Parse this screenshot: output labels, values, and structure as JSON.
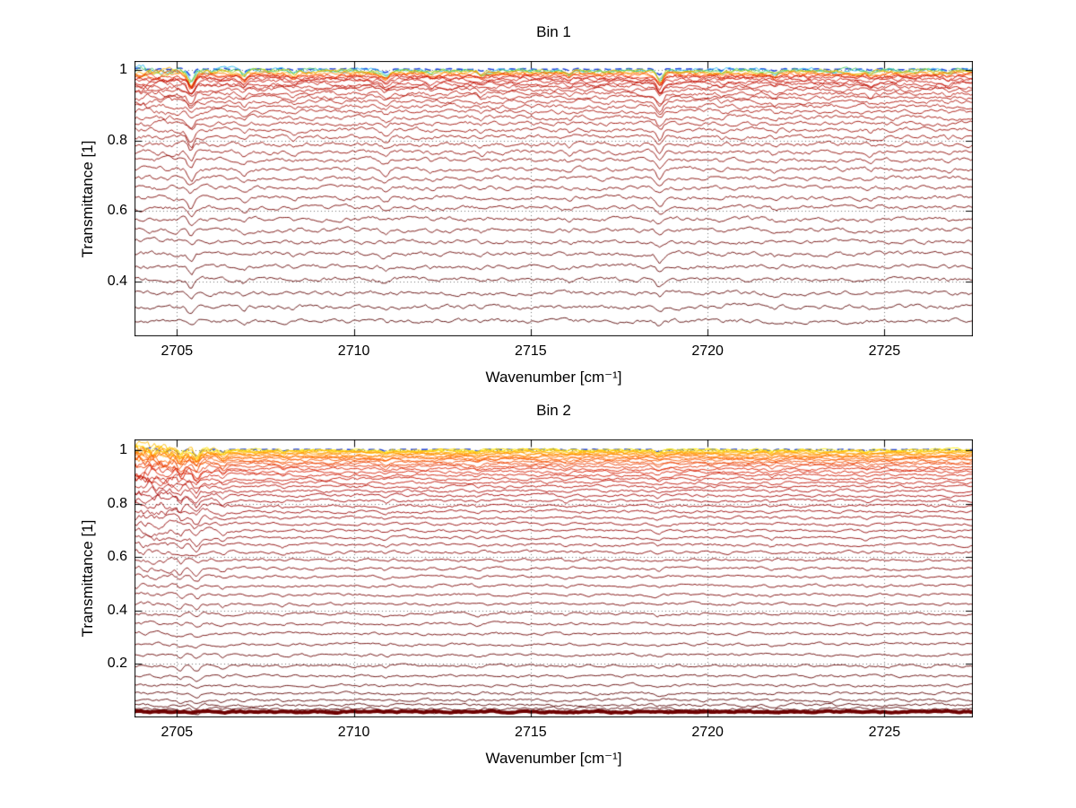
{
  "figure": {
    "background": "#ffffff",
    "axis_color": "#000000"
  },
  "chart_data": [
    {
      "type": "line",
      "title": "Bin 1",
      "xlabel": "Wavenumber [cm⁻¹]",
      "ylabel": "Transmittance [1]",
      "xlim": [
        2703.8,
        2727.5
      ],
      "ylim": [
        0.245,
        1.025
      ],
      "xticks": [
        2705,
        2710,
        2715,
        2720,
        2725
      ],
      "xtick_labels": [
        "2705",
        "2710",
        "2715",
        "2720",
        "2725"
      ],
      "yticks": [
        0.4,
        0.6,
        0.8,
        1
      ],
      "ytick_labels": [
        "0.4",
        "0.6",
        "0.8",
        "1"
      ],
      "grid": "dotted",
      "grid_color": "#777777",
      "axis_color": "#000000",
      "legend": "none",
      "dash_first": true,
      "noise_amp": 0.0045,
      "edge_noise": 0.3,
      "color_stops": [
        [
          0,
          "#2244dd"
        ],
        [
          0.026,
          "#22bbee"
        ],
        [
          0.055,
          "#44cc44"
        ],
        [
          0.08,
          "#cccc00"
        ],
        [
          0.105,
          "#ffaa00"
        ],
        [
          0.13,
          "#ff7700"
        ],
        [
          0.16,
          "#ff4400"
        ],
        [
          0.2,
          "#cc1100"
        ],
        [
          1,
          "#550000"
        ]
      ],
      "series_levels": [
        1.002,
        0.999,
        0.997,
        0.995,
        0.992,
        0.989,
        0.986,
        0.982,
        0.978,
        0.973,
        0.967,
        0.96,
        0.952,
        0.943,
        0.933,
        0.922,
        0.91,
        0.896,
        0.881,
        0.865,
        0.848,
        0.83,
        0.81,
        0.789,
        0.767,
        0.744,
        0.719,
        0.693,
        0.666,
        0.638,
        0.609,
        0.578,
        0.546,
        0.513,
        0.479,
        0.443,
        0.406,
        0.368,
        0.329,
        0.288
      ],
      "features": [
        {
          "x": 2705.4,
          "w": 0.12,
          "d": 0.03
        },
        {
          "x": 2706.9,
          "w": 0.1,
          "d": 0.012
        },
        {
          "x": 2708.3,
          "w": 0.1,
          "d": 0.007
        },
        {
          "x": 2710.9,
          "w": 0.13,
          "d": 0.014
        },
        {
          "x": 2712.2,
          "w": 0.08,
          "d": 0.006
        },
        {
          "x": 2713.6,
          "w": 0.1,
          "d": 0.009
        },
        {
          "x": 2716.1,
          "w": 0.09,
          "d": 0.007
        },
        {
          "x": 2718.65,
          "w": 0.12,
          "d": 0.026
        },
        {
          "x": 2720.4,
          "w": 0.08,
          "d": 0.007
        },
        {
          "x": 2721.9,
          "w": 0.1,
          "d": 0.009
        },
        {
          "x": 2724.6,
          "w": 0.09,
          "d": 0.007
        },
        {
          "x": 2726.8,
          "w": 0.09,
          "d": 0.006
        }
      ]
    },
    {
      "type": "line",
      "title": "Bin 2",
      "xlabel": "Wavenumber [cm⁻¹]",
      "ylabel": "Transmittance [1]",
      "xlim": [
        2703.8,
        2727.5
      ],
      "ylim": [
        0.0,
        1.04
      ],
      "xticks": [
        2705,
        2710,
        2715,
        2720,
        2725
      ],
      "xtick_labels": [
        "2705",
        "2710",
        "2715",
        "2720",
        "2725"
      ],
      "yticks": [
        0.2,
        0.4,
        0.6,
        0.8,
        1
      ],
      "ytick_labels": [
        "0.2",
        "0.4",
        "0.6",
        "0.8",
        "1"
      ],
      "grid": "dotted",
      "grid_color": "#777777",
      "axis_color": "#000000",
      "legend": "none",
      "dash_first": true,
      "noise_amp": 0.004,
      "edge_noise": 1.6,
      "color_stops": [
        [
          0,
          "#2244dd"
        ],
        [
          0.02,
          "#ffee00"
        ],
        [
          0.06,
          "#ffcc00"
        ],
        [
          0.12,
          "#ff9900"
        ],
        [
          0.2,
          "#ff6600"
        ],
        [
          0.3,
          "#dd2200"
        ],
        [
          0.45,
          "#a00000"
        ],
        [
          1,
          "#500000"
        ]
      ],
      "series_levels": [
        1.002,
        1.0,
        0.998,
        0.996,
        0.993,
        0.99,
        0.987,
        0.983,
        0.979,
        0.974,
        0.969,
        0.963,
        0.956,
        0.948,
        0.939,
        0.929,
        0.918,
        0.906,
        0.893,
        0.879,
        0.864,
        0.848,
        0.83,
        0.811,
        0.791,
        0.77,
        0.748,
        0.724,
        0.699,
        0.673,
        0.646,
        0.618,
        0.589,
        0.558,
        0.526,
        0.493,
        0.459,
        0.424,
        0.388,
        0.351,
        0.313,
        0.274,
        0.234,
        0.193,
        0.155,
        0.12,
        0.09,
        0.065,
        0.046,
        0.032,
        0.023
      ],
      "band": {
        "level": 0.021,
        "color": "#6e0000",
        "width": 4
      },
      "features": [
        {
          "x": 2705.1,
          "w": 0.1,
          "d": 0.02
        },
        {
          "x": 2705.55,
          "w": 0.12,
          "d": 0.028
        },
        {
          "x": 2706.3,
          "w": 0.1,
          "d": 0.014
        },
        {
          "x": 2708.0,
          "w": 0.09,
          "d": 0.007
        },
        {
          "x": 2710.9,
          "w": 0.11,
          "d": 0.009
        },
        {
          "x": 2713.5,
          "w": 0.09,
          "d": 0.007
        },
        {
          "x": 2716.0,
          "w": 0.09,
          "d": 0.006
        },
        {
          "x": 2718.6,
          "w": 0.11,
          "d": 0.01
        },
        {
          "x": 2721.8,
          "w": 0.09,
          "d": 0.007
        },
        {
          "x": 2724.5,
          "w": 0.09,
          "d": 0.006
        }
      ]
    }
  ]
}
